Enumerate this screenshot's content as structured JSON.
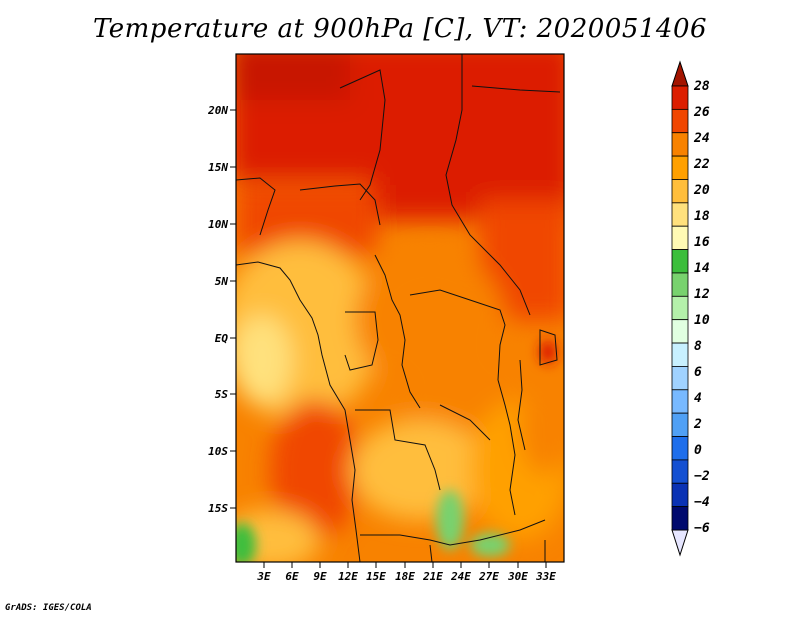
{
  "title": "Temperature at 900hPa [C], VT: 2020051406",
  "credit": "GrADS: IGES/COLA",
  "map": {
    "lat_labels": [
      "20N",
      "15N",
      "10N",
      "5N",
      "EQ",
      "5S",
      "10S",
      "15S"
    ],
    "lon_labels": [
      "3E",
      "6E",
      "9E",
      "12E",
      "15E",
      "18E",
      "21E",
      "24E",
      "27E",
      "30E",
      "33E"
    ]
  },
  "colorbar": {
    "labels": [
      "28",
      "26",
      "24",
      "22",
      "20",
      "18",
      "16",
      "14",
      "12",
      "10",
      "8",
      "6",
      "4",
      "2",
      "0",
      "−2",
      "−4",
      "−6"
    ],
    "colors": [
      "#a31400",
      "#dc1e00",
      "#f04600",
      "#f88200",
      "#ffa000",
      "#ffbe3c",
      "#ffe17d",
      "#fffab4",
      "#3cbe3c",
      "#78d26e",
      "#b4f0aa",
      "#e1ffe1",
      "#c8f0ff",
      "#a0d2ff",
      "#78b9ff",
      "#50a0f5",
      "#1e6eeb",
      "#1450d2",
      "#0a32b4",
      "#000a6e",
      "#e6e6ff"
    ]
  }
}
